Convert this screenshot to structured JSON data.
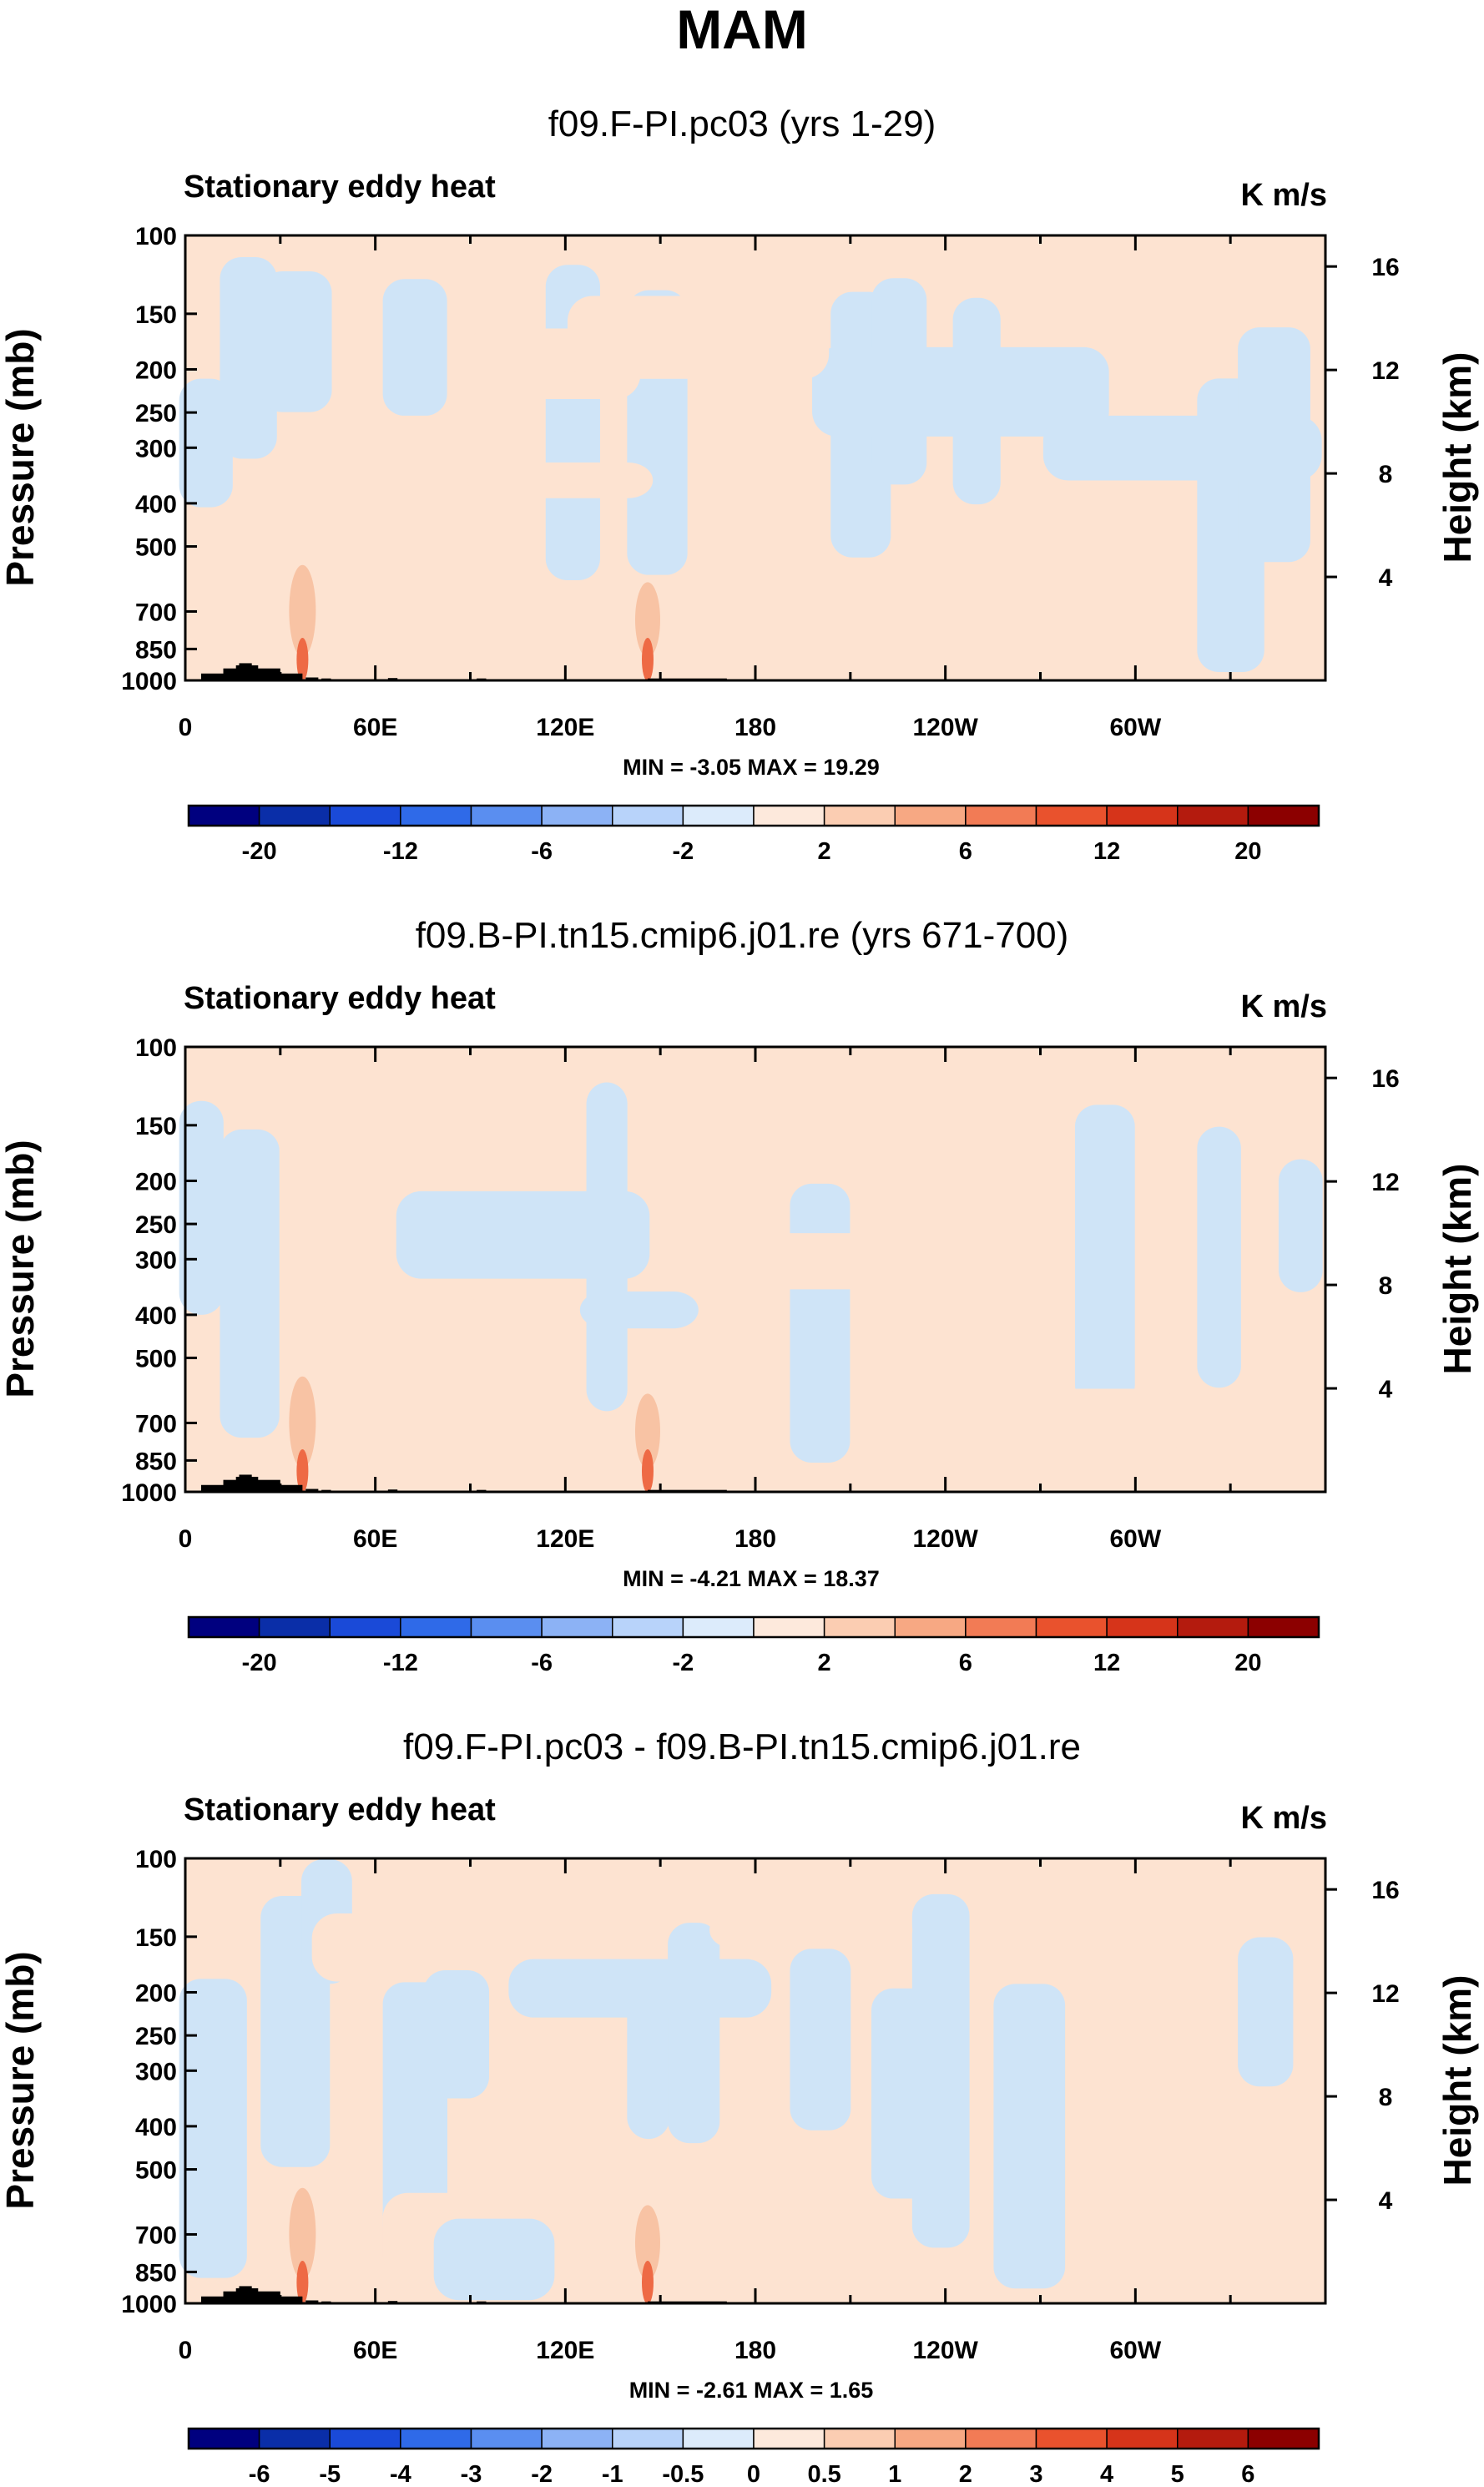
{
  "figure": {
    "title": "MAM"
  },
  "colors": {
    "light_blue": "#cfe4f7",
    "light_peach": "#fde3d1",
    "medium_peach": "#f8c3a4",
    "orange_red": "#ee6a45",
    "terrain": "#000000"
  },
  "chart_data": [
    {
      "type": "heatmap",
      "title": "f09.F-PI.pc03 (yrs 1-29)",
      "left_string": "Stationary eddy heat",
      "right_string": "K m/s",
      "ylabel": "Pressure (mb)",
      "ylabel_right": "Height (km)",
      "yticks": [
        "100",
        "150",
        "200",
        "250",
        "300",
        "400",
        "500",
        "700",
        "850",
        "1000"
      ],
      "yticks_right": [
        "16",
        "12",
        "8",
        "4"
      ],
      "xticks": [
        "0",
        "60E",
        "120E",
        "180",
        "120W",
        "60W"
      ],
      "minmax": "MIN = -3.05  MAX = 19.29",
      "colorbar": {
        "levels": [
          "-20",
          "-12",
          "-6",
          "-2",
          "2",
          "6",
          "12",
          "20"
        ],
        "colors": [
          "#00007f",
          "#0a2ea8",
          "#1a4ad8",
          "#2f6ae8",
          "#5a8ef0",
          "#8cb2f5",
          "#b8d3fa",
          "#dcebfb",
          "#fde9dc",
          "#fbcdb2",
          "#f7a883",
          "#f27b55",
          "#e9522d",
          "#d6341a",
          "#b41b0e",
          "#8c0000"
        ]
      }
    },
    {
      "type": "heatmap",
      "title": "f09.B-PI.tn15.cmip6.j01.re (yrs 671-700)",
      "left_string": "Stationary eddy heat",
      "right_string": "K m/s",
      "ylabel": "Pressure (mb)",
      "ylabel_right": "Height (km)",
      "yticks": [
        "100",
        "150",
        "200",
        "250",
        "300",
        "400",
        "500",
        "700",
        "850",
        "1000"
      ],
      "yticks_right": [
        "16",
        "12",
        "8",
        "4"
      ],
      "xticks": [
        "0",
        "60E",
        "120E",
        "180",
        "120W",
        "60W"
      ],
      "minmax": "MIN = -4.21  MAX = 18.37",
      "colorbar": {
        "levels": [
          "-20",
          "-12",
          "-6",
          "-2",
          "2",
          "6",
          "12",
          "20"
        ],
        "colors": [
          "#00007f",
          "#0a2ea8",
          "#1a4ad8",
          "#2f6ae8",
          "#5a8ef0",
          "#8cb2f5",
          "#b8d3fa",
          "#dcebfb",
          "#fde9dc",
          "#fbcdb2",
          "#f7a883",
          "#f27b55",
          "#e9522d",
          "#d6341a",
          "#b41b0e",
          "#8c0000"
        ]
      }
    },
    {
      "type": "heatmap",
      "title": "f09.F-PI.pc03 - f09.B-PI.tn15.cmip6.j01.re",
      "left_string": "Stationary eddy heat",
      "right_string": "K m/s",
      "ylabel": "Pressure (mb)",
      "ylabel_right": "Height (km)",
      "yticks": [
        "100",
        "150",
        "200",
        "250",
        "300",
        "400",
        "500",
        "700",
        "850",
        "1000"
      ],
      "yticks_right": [
        "16",
        "12",
        "8",
        "4"
      ],
      "xticks": [
        "0",
        "60E",
        "120E",
        "180",
        "120W",
        "60W"
      ],
      "minmax": "MIN = -2.61  MAX =  1.65",
      "colorbar": {
        "levels": [
          "-6",
          "-5",
          "-4",
          "-3",
          "-2",
          "-1",
          "-0.5",
          "0",
          "0.5",
          "1",
          "2",
          "3",
          "4",
          "5",
          "6"
        ],
        "colors": [
          "#00007f",
          "#0a2ea8",
          "#1a4ad8",
          "#2f6ae8",
          "#5a8ef0",
          "#8cb2f5",
          "#b8d3fa",
          "#dcebfb",
          "#fde9dc",
          "#fbcdb2",
          "#f7a883",
          "#f27b55",
          "#e9522d",
          "#d6341a",
          "#b41b0e",
          "#8c0000"
        ]
      }
    }
  ]
}
